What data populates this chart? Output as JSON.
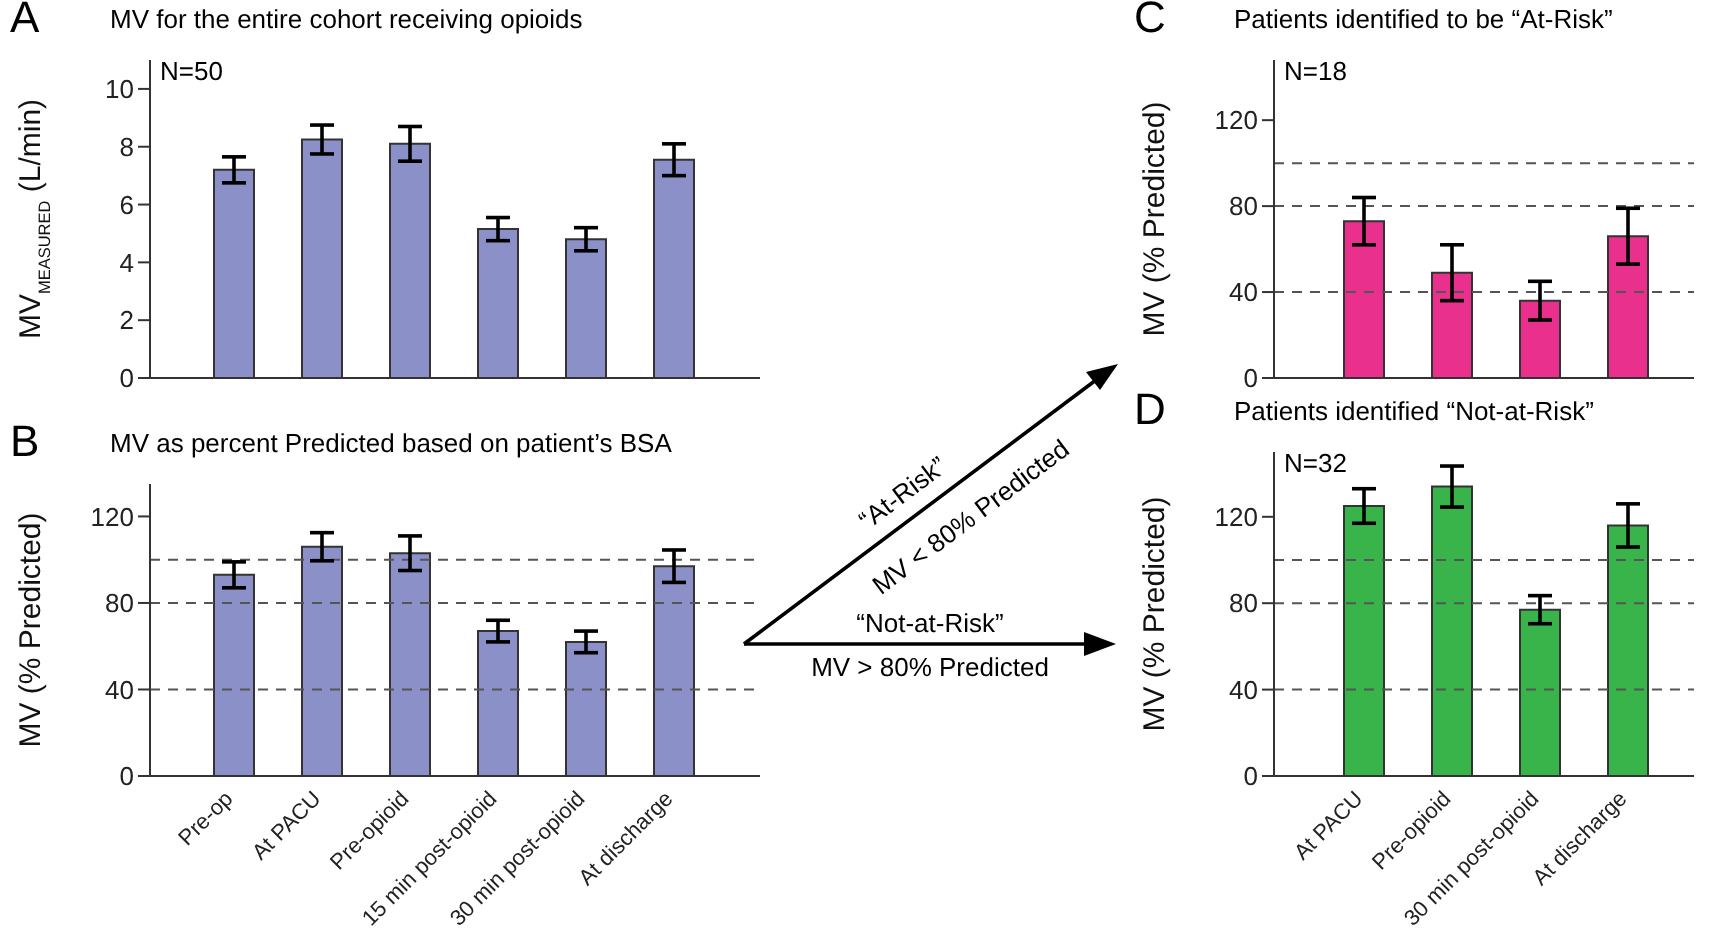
{
  "chart_data": [
    {
      "type": "bar",
      "title": "MV for the entire cohort receiving opioids",
      "ylabel": "MV$_{MEASURED}$ (L/min)",
      "annotations": [
        "A",
        "N=50"
      ],
      "categories": [
        null,
        null,
        null,
        null,
        null,
        null
      ],
      "values": [
        7.2,
        8.25,
        8.1,
        5.15,
        4.8,
        7.55
      ],
      "errors": [
        0.45,
        0.5,
        0.6,
        0.4,
        0.4,
        0.55
      ],
      "color": "#8c90c8",
      "ylim": [
        0,
        11
      ],
      "yticks": [
        0,
        2,
        4,
        6,
        8,
        10
      ],
      "tick_labels": "y"
    },
    {
      "type": "bar",
      "title": "MV as percent Predicted based on patient’s BSA",
      "ylabel": "MV (% Predicted)",
      "annotations": [
        "B"
      ],
      "categories": [
        "Pre-op",
        "At PACU",
        "Pre-opioid",
        "15 min post-opioid",
        "30 min post-opioid",
        "At discharge"
      ],
      "values": [
        93,
        106,
        103,
        67,
        62,
        97
      ],
      "errors": [
        6,
        6.5,
        8,
        5,
        5,
        7.5
      ],
      "color": "#8c90c8",
      "ylim": [
        0,
        135
      ],
      "yticks": [
        0,
        40,
        80,
        120
      ],
      "ref_lines": [
        {
          "axis": "y",
          "value": 40,
          "line_style": "dashed",
          "color": "#555555"
        },
        {
          "axis": "y",
          "value": 80,
          "line_style": "dashed",
          "color": "#555555"
        },
        {
          "axis": "y",
          "value": 100,
          "line_style": "dashed",
          "color": "#555555"
        }
      ]
    },
    {
      "type": "other",
      "annotations": [
        "“At-Risk”",
        "MV < 80% Predicted",
        "“Not-at-Risk”",
        "MV > 80% Predicted"
      ]
    },
    {
      "type": "bar",
      "title": "Patients identified to be “At-Risk”",
      "ylabel": "MV (% Predicted)",
      "annotations": [
        "C",
        "N=18"
      ],
      "categories": [
        null,
        null,
        null,
        null
      ],
      "values": [
        73,
        49,
        36,
        66
      ],
      "errors": [
        11,
        13,
        9,
        13
      ],
      "color": "#e8308c",
      "ylim": [
        0,
        148
      ],
      "yticks": [
        0,
        40,
        80,
        120
      ],
      "tick_labels": "y",
      "ref_lines": [
        {
          "axis": "y",
          "value": 40,
          "line_style": "dashed",
          "color": "#555555"
        },
        {
          "axis": "y",
          "value": 80,
          "line_style": "dashed",
          "color": "#555555"
        },
        {
          "axis": "y",
          "value": 100,
          "line_style": "dashed",
          "color": "#555555"
        }
      ]
    },
    {
      "type": "bar",
      "title": "Patients identified “Not-at-Risk”",
      "ylabel": "MV (% Predicted)",
      "annotations": [
        "D",
        "N=32"
      ],
      "categories": [
        "At PACU",
        "Pre-opioid",
        "30 min post-opioid",
        "At discharge"
      ],
      "values": [
        125,
        134,
        77,
        116
      ],
      "errors": [
        8,
        9.5,
        6.5,
        10
      ],
      "color": "#38b44a",
      "ylim": [
        0,
        150
      ],
      "yticks": [
        0,
        40,
        80,
        120
      ],
      "ref_lines": [
        {
          "axis": "y",
          "value": 40,
          "line_style": "dashed",
          "color": "#555555"
        },
        {
          "axis": "y",
          "value": 80,
          "line_style": "dashed",
          "color": "#555555"
        },
        {
          "axis": "y",
          "value": 100,
          "line_style": "dashed",
          "color": "#555555"
        }
      ]
    }
  ]
}
